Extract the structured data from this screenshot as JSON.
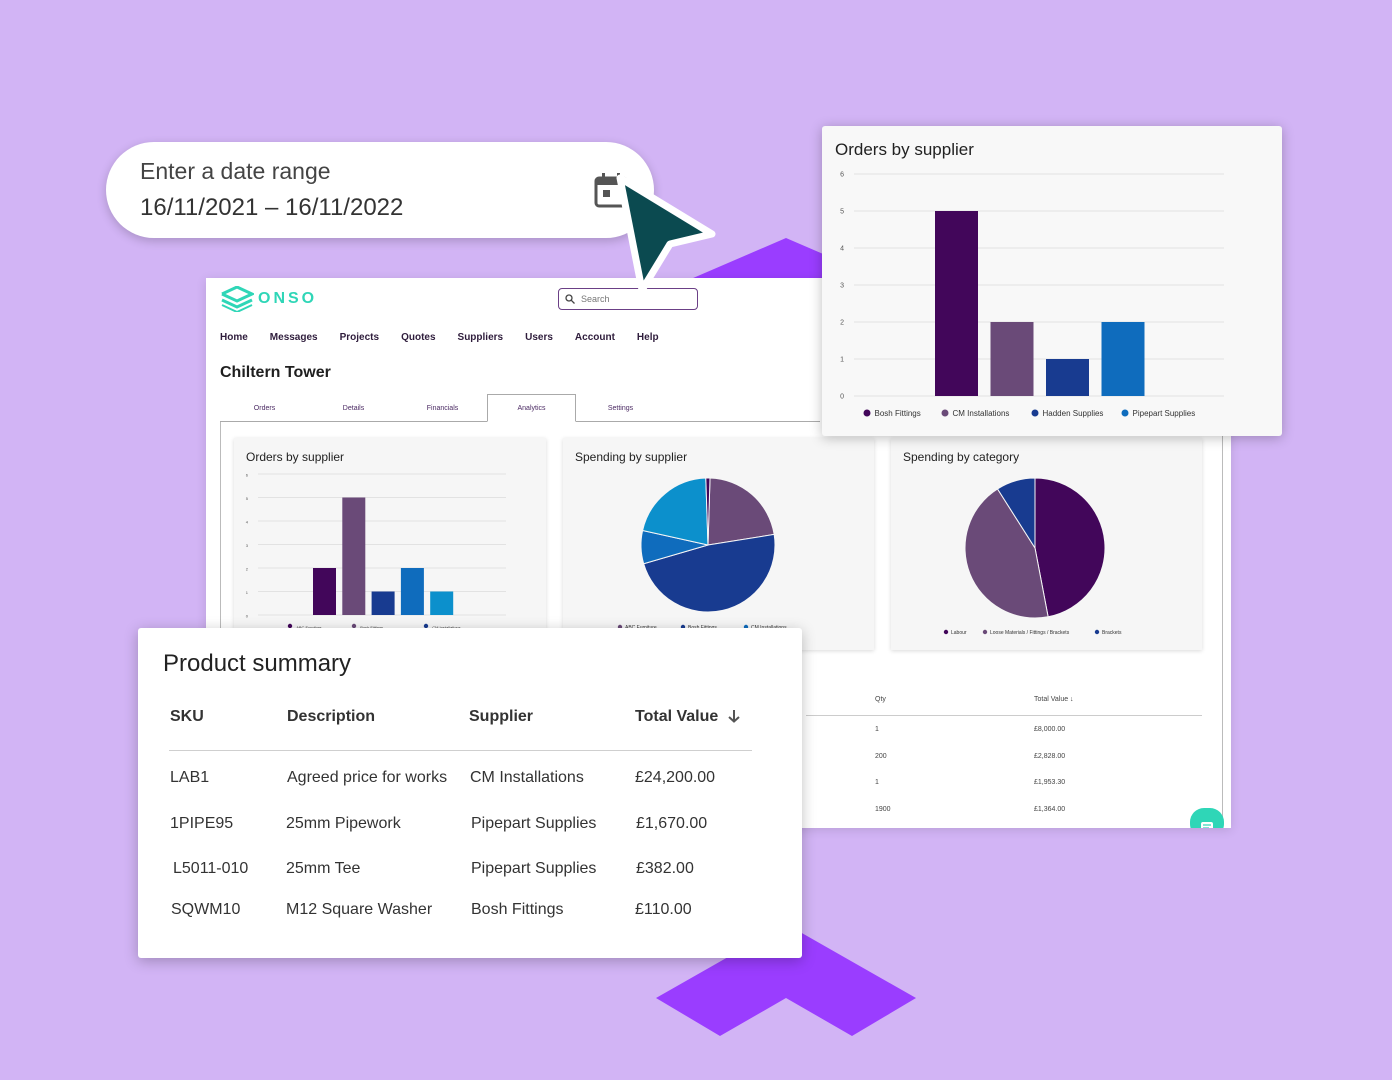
{
  "colors": {
    "background": "#d2b4f5",
    "accent_purple": "#9a3dff",
    "brand_teal": "#2fd6b7",
    "dark_purple": "#42065a",
    "mauve": "#6a4a78",
    "navy": "#183b90",
    "blue": "#0f6cbd",
    "light_blue": "#0c90cc"
  },
  "date_range": {
    "label": "Enter a date range",
    "value": "16/11/2021 – 16/11/2022",
    "icon": "calendar-icon"
  },
  "app": {
    "logo_text": "ONSO",
    "search_placeholder": "Search",
    "nav": [
      "Home",
      "Messages",
      "Projects",
      "Quotes",
      "Suppliers",
      "Users",
      "Account",
      "Help"
    ],
    "project_title": "Chiltern Tower",
    "tabs": [
      "Orders",
      "Details",
      "Financials",
      "Analytics",
      "Settings"
    ],
    "active_tab": "Analytics",
    "cards": {
      "orders": "Orders by supplier",
      "spending_supplier": "Spending by supplier",
      "spending_category": "Spending by category"
    },
    "table": {
      "headers": {
        "qty": "Qty",
        "total": "Total Value ↓"
      },
      "rows": [
        {
          "qty": "1",
          "total": "£8,000.00"
        },
        {
          "qty": "200",
          "total": "£2,828.00"
        },
        {
          "qty": "1",
          "total": "£1,953.30"
        },
        {
          "qty": "1900",
          "total": "£1,364.00"
        }
      ]
    }
  },
  "orders_overlay": {
    "title": "Orders by supplier"
  },
  "product_summary": {
    "title": "Product summary",
    "headers": {
      "sku": "SKU",
      "description": "Description",
      "supplier": "Supplier",
      "total": "Total Value"
    },
    "rows": [
      {
        "sku": "LAB1",
        "description": "Agreed price for works",
        "supplier": "CM Installations",
        "total": "£24,200.00"
      },
      {
        "sku": "1PIPE95",
        "description": "25mm Pipework",
        "supplier": "Pipepart Supplies",
        "total": "£1,670.00"
      },
      {
        "sku": "L5011-010",
        "description": "25mm Tee",
        "supplier": "Pipepart Supplies",
        "total": "£382.00"
      },
      {
        "sku": "SQWM10",
        "description": "M12 Square Washer",
        "supplier": "Bosh Fittings",
        "total": "£110.00"
      }
    ]
  },
  "chart_data": [
    {
      "type": "bar",
      "title": "Orders by supplier",
      "categories": [
        "Bosh Fittings",
        "CM Installations",
        "Hadden Supplies",
        "Pipepart Supplies"
      ],
      "values": [
        5,
        2,
        1,
        2
      ],
      "colors": [
        "#42065a",
        "#6a4a78",
        "#183b90",
        "#0f6cbd"
      ],
      "ylim": [
        0,
        6
      ],
      "yticks": [
        "0",
        "1",
        "2",
        "3",
        "4",
        "5",
        "6"
      ],
      "legend": "bottom"
    },
    {
      "type": "bar",
      "title": "Orders by supplier",
      "categories": [
        "ABC Furniture",
        "Bosh Fittings",
        "CM Installations",
        "Hadden Supplies",
        "Pipepart Supplies"
      ],
      "values": [
        2,
        5,
        1,
        2,
        1
      ],
      "colors": [
        "#42065a",
        "#6a4a78",
        "#183b90",
        "#0f6cbd",
        "#0c90cc"
      ],
      "ylim": [
        0,
        6
      ],
      "legend": "bottom",
      "legend_labels": [
        "ABC Furniture",
        "Bosh Fittings",
        "CM Installations"
      ]
    },
    {
      "type": "pie",
      "title": "Spending by supplier",
      "values": [
        22,
        48,
        8,
        21,
        1
      ],
      "colors": [
        "#6a4a78",
        "#183b90",
        "#0f6cbd",
        "#0c90cc",
        "#42065a"
      ],
      "legend": "bottom",
      "legend_labels": [
        "ABC Furniture",
        "Bosh Fittings",
        "CM Installations"
      ]
    },
    {
      "type": "pie",
      "title": "Spending by category",
      "categories": [
        "Labour",
        "Loose Materials / Fittings / Brackets",
        "Brackets"
      ],
      "values": [
        47,
        44,
        9
      ],
      "colors": [
        "#42065a",
        "#6a4a78",
        "#183b90"
      ],
      "legend": "bottom"
    }
  ]
}
